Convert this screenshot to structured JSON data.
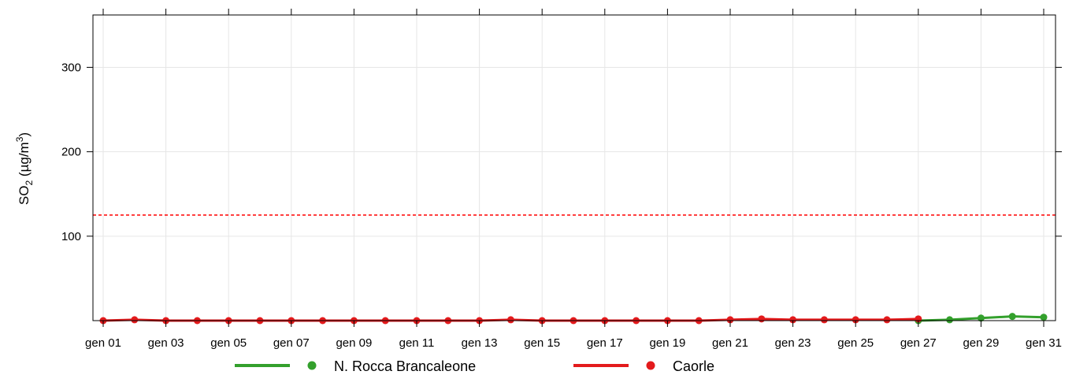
{
  "chart_data": {
    "type": "line",
    "title": "",
    "ylabel": {
      "main": "SO",
      "sub": "2",
      "unit_open": " (µg/m",
      "sup": "3",
      "unit_close": ")"
    },
    "xlabel": "",
    "x": [
      "gen 01",
      "gen 02",
      "gen 03",
      "gen 04",
      "gen 05",
      "gen 06",
      "gen 07",
      "gen 08",
      "gen 09",
      "gen 10",
      "gen 11",
      "gen 12",
      "gen 13",
      "gen 14",
      "gen 15",
      "gen 16",
      "gen 17",
      "gen 18",
      "gen 19",
      "gen 20",
      "gen 21",
      "gen 22",
      "gen 23",
      "gen 24",
      "gen 25",
      "gen 26",
      "gen 27",
      "gen 28",
      "gen 29",
      "gen 30",
      "gen 31"
    ],
    "x_tick_labels": [
      "gen 01",
      "gen 03",
      "gen 05",
      "gen 07",
      "gen 09",
      "gen 11",
      "gen 13",
      "gen 15",
      "gen 17",
      "gen 19",
      "gen 21",
      "gen 23",
      "gen 25",
      "gen 27",
      "gen 29",
      "gen 31"
    ],
    "y_ticks": [
      100,
      200,
      300
    ],
    "ylim": [
      0,
      362
    ],
    "grid": true,
    "threshold": {
      "value": 125,
      "color": "#ff0000",
      "style": "dotted"
    },
    "series": [
      {
        "name": "N. Rocca Brancaleone",
        "color": "#33a02c",
        "values": [
          null,
          null,
          null,
          null,
          null,
          null,
          null,
          null,
          null,
          null,
          null,
          null,
          null,
          null,
          null,
          null,
          null,
          null,
          null,
          null,
          null,
          null,
          null,
          null,
          null,
          null,
          0,
          1,
          3,
          5,
          4
        ]
      },
      {
        "name": "Caorle",
        "color": "#e31a1c",
        "values": [
          0,
          1,
          0,
          0,
          0,
          0,
          0,
          0,
          0,
          0,
          0,
          0,
          0,
          1,
          0,
          0,
          0,
          0,
          0,
          0,
          1,
          2,
          1,
          1,
          1,
          1,
          2,
          null,
          null,
          null,
          null
        ]
      }
    ],
    "legend": {
      "position": "bottom"
    }
  }
}
